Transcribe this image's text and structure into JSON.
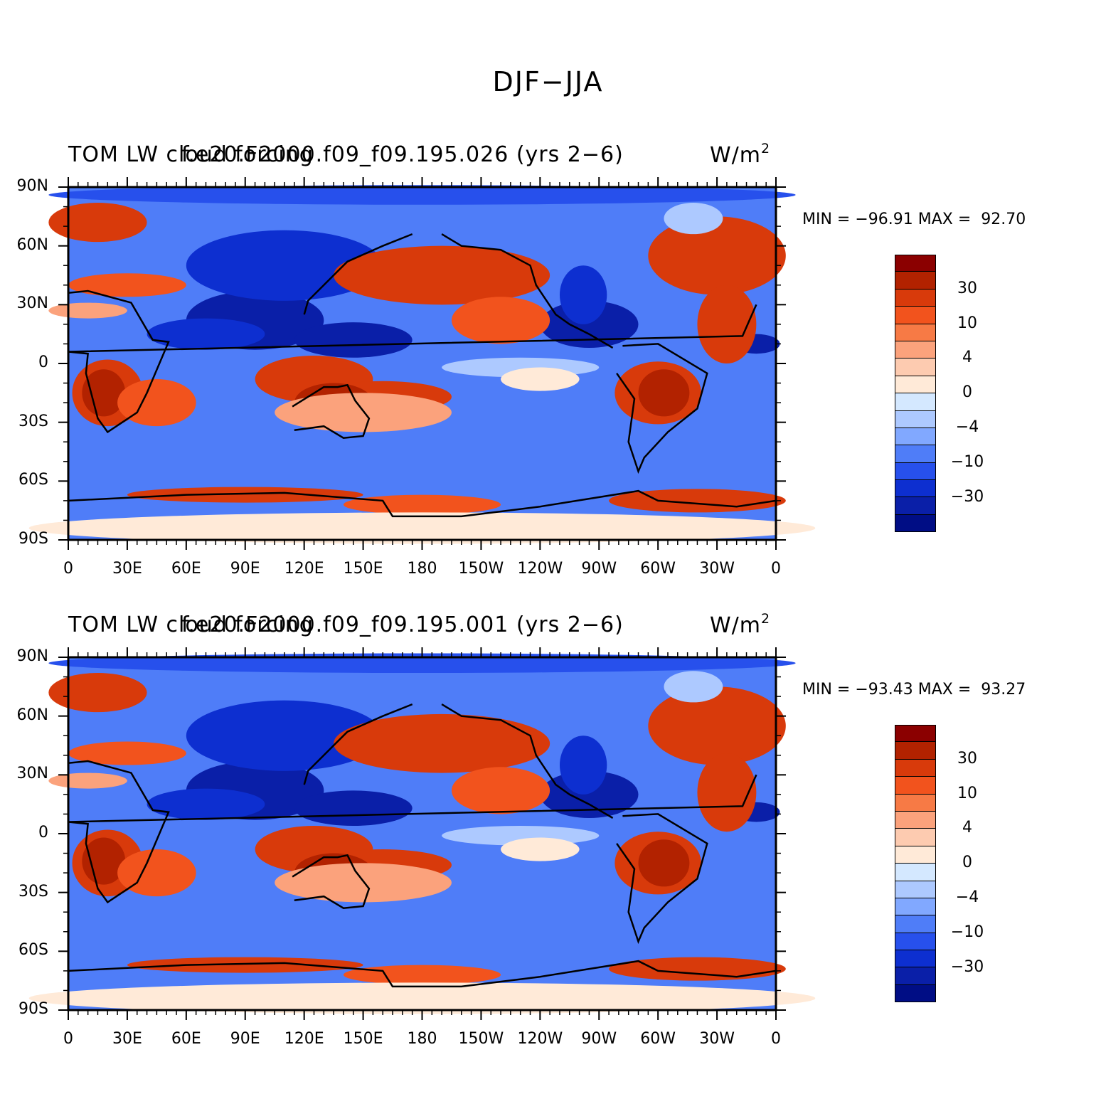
{
  "title": "DJF−JJA",
  "panels": [
    {
      "left_title": "TOM LW cloud forcing",
      "center_title": "f.e20.F2000.f09_f09.195.026 (yrs 2−6)",
      "units_base": "W/m",
      "units_exp": "2",
      "minmax": "MIN = −96.91 MAX =  92.70"
    },
    {
      "left_title": "TOM LW cloud forcing",
      "center_title": "f.e20.F2000.f09_f09.195.001 (yrs 2−6)",
      "units_base": "W/m",
      "units_exp": "2",
      "minmax": "MIN = −93.43 MAX =  93.27"
    }
  ],
  "axes": {
    "y_ticks": [
      "90N",
      "60N",
      "30N",
      "0",
      "30S",
      "60S",
      "90S"
    ],
    "x_ticks": [
      "0",
      "30E",
      "60E",
      "90E",
      "120E",
      "150E",
      "180",
      "150W",
      "120W",
      "90W",
      "60W",
      "30W",
      "0"
    ]
  },
  "colorbar": {
    "colors": [
      "#8b0000",
      "#b22200",
      "#d83a0b",
      "#f2531d",
      "#f77a45",
      "#fba27c",
      "#fdcbb0",
      "#ffead8",
      "#d4e8ff",
      "#adc9ff",
      "#81a8ff",
      "#4f7df8",
      "#2750ec",
      "#0d2fd0",
      "#0a1fa8",
      "#000d85"
    ],
    "labels": [
      "30",
      "10",
      "4",
      "0",
      "−4",
      "−10",
      "−30"
    ]
  },
  "map_colors": {
    "strong_red": "#b22200",
    "red": "#d83a0b",
    "orange": "#f2531d",
    "light_orange": "#fba27c",
    "pale": "#ffead8",
    "light_blue": "#adc9ff",
    "blue": "#4f7df8",
    "mid_blue": "#2750ec",
    "dark_blue": "#0d2fd0",
    "navy": "#0a1fa8"
  }
}
